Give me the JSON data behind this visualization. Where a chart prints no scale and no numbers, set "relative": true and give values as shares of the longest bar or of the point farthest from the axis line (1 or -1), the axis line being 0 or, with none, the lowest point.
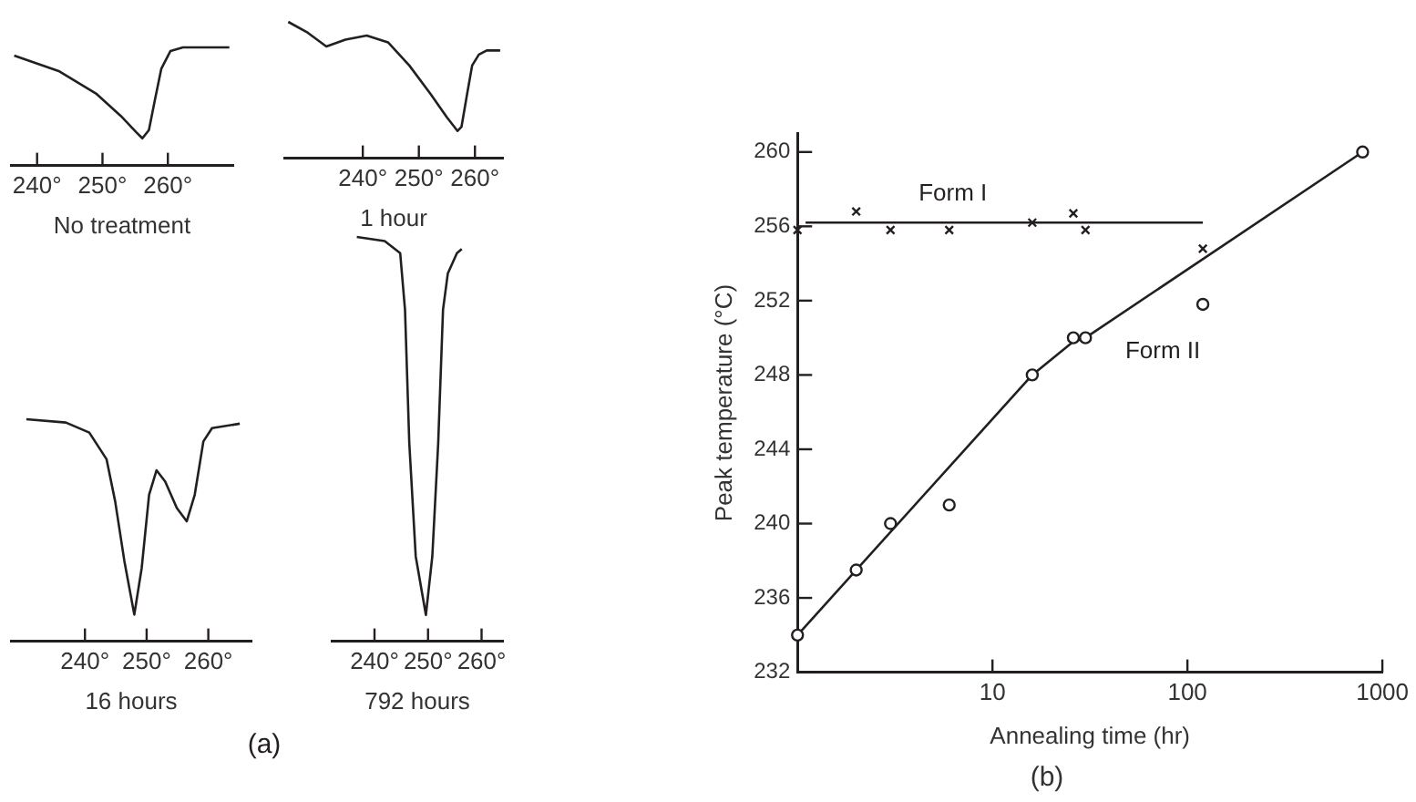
{
  "chart_data": [
    {
      "type": "line",
      "title": "No treatment",
      "relative": true,
      "xlim": [
        236,
        270
      ],
      "xticks": [
        {
          "value": 240,
          "label": "240°"
        },
        {
          "value": 250,
          "label": "250°"
        },
        {
          "value": 260,
          "label": "260°"
        }
      ],
      "series": [
        {
          "color": "#231f20",
          "x": [
            236.5,
            243.3,
            249.0,
            252.8,
            255.2,
            256.1,
            257.1,
            258.0,
            259.0,
            260.4,
            262.3,
            269.4
          ],
          "values": [
            0.93,
            0.8,
            0.61,
            0.42,
            0.28,
            0.23,
            0.3,
            0.55,
            0.82,
            0.97,
            1,
            1
          ]
        }
      ]
    },
    {
      "type": "line",
      "title": "1 hour",
      "relative": true,
      "xlim": [
        226,
        265
      ],
      "xticks": [
        {
          "value": 240,
          "label": "240°"
        },
        {
          "value": 250,
          "label": "250°"
        },
        {
          "value": 260,
          "label": "260°"
        }
      ],
      "series": [
        {
          "color": "#231f20",
          "x": [
            226.7,
            230.2,
            233.5,
            236.9,
            240.7,
            244.5,
            248.3,
            252.1,
            255.0,
            256.9,
            257.6,
            258.6,
            259.5,
            260.7,
            262.1,
            264.5
          ],
          "values": [
            1,
            0.92,
            0.82,
            0.87,
            0.9,
            0.85,
            0.68,
            0.47,
            0.3,
            0.2,
            0.23,
            0.47,
            0.68,
            0.76,
            0.79,
            0.79
          ]
        }
      ]
    },
    {
      "type": "line",
      "title": "16 hours",
      "relative": true,
      "xlim": [
        228,
        267
      ],
      "xticks": [
        {
          "value": 240,
          "label": "240°"
        },
        {
          "value": 250,
          "label": "250°"
        },
        {
          "value": 260,
          "label": "260°"
        }
      ],
      "series": [
        {
          "color": "#231f20",
          "x": [
            230.5,
            236.9,
            240.7,
            243.5,
            244.9,
            246.4,
            248.0,
            249.2,
            250.4,
            251.6,
            253.0,
            254.9,
            256.5,
            257.8,
            259.2,
            260.6,
            265.1
          ],
          "values": [
            1,
            0.985,
            0.94,
            0.82,
            0.63,
            0.36,
            0.12,
            0.33,
            0.66,
            0.77,
            0.72,
            0.6,
            0.54,
            0.66,
            0.9,
            0.96,
            0.98
          ]
        }
      ]
    },
    {
      "type": "line",
      "title": "792 hours",
      "relative": true,
      "xlim": [
        232,
        264
      ],
      "xticks": [
        {
          "value": 240,
          "label": "240°"
        },
        {
          "value": 250,
          "label": "250°"
        },
        {
          "value": 260,
          "label": "260°"
        }
      ],
      "annotations": [
        "(a)"
      ],
      "series": [
        {
          "color": "#231f20",
          "x": [
            236.7,
            241.9,
            244.8,
            245.7,
            246.5,
            247.7,
            249.6,
            250.8,
            251.9,
            252.8,
            253.7,
            255.4,
            256.3
          ],
          "values": [
            1,
            0.99,
            0.96,
            0.82,
            0.49,
            0.21,
            0.065,
            0.21,
            0.49,
            0.82,
            0.91,
            0.96,
            0.97
          ]
        }
      ]
    },
    {
      "type": "scatter",
      "title": "(b)",
      "xlabel": "Annealing time (hr)",
      "ylabel": "Peak temperature (°C)",
      "log": "x",
      "xlim": [
        1,
        1000
      ],
      "xticks": [
        10,
        100,
        1000
      ],
      "ylim": [
        232,
        261
      ],
      "yticks": [
        232,
        236,
        240,
        244,
        248,
        252,
        256,
        260
      ],
      "series": [
        {
          "type": "scatter",
          "name": "Form I",
          "marker": "cross",
          "color": "#231f20",
          "x": [
            1,
            2,
            3,
            6,
            16,
            26,
            30,
            120
          ],
          "values": [
            255.8,
            256.8,
            255.8,
            255.8,
            256.2,
            256.7,
            255.8,
            254.8
          ]
        },
        {
          "type": "line",
          "color": "#231f20",
          "x": [
            1.1,
            120
          ],
          "values": [
            256.2,
            256.2
          ]
        },
        {
          "type": "scatter",
          "name": "Form II",
          "marker": "circle",
          "color": "#231f20",
          "x": [
            1,
            2,
            3,
            6,
            16,
            26,
            30,
            120,
            792
          ],
          "values": [
            234,
            237.5,
            240,
            241,
            248,
            250,
            250,
            251.8,
            260
          ]
        },
        {
          "type": "line",
          "color": "#231f20",
          "x": [
            1,
            16,
            26,
            30,
            792
          ],
          "values": [
            234,
            248,
            249.8,
            250,
            260
          ]
        }
      ]
    }
  ]
}
